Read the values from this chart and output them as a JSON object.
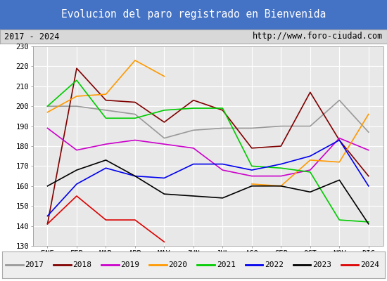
{
  "title": "Evolucion del paro registrado en Bienvenida",
  "subtitle_left": "2017 - 2024",
  "subtitle_right": "http://www.foro-ciudad.com",
  "months": [
    "ENE",
    "FEB",
    "MAR",
    "ABR",
    "MAY",
    "JUN",
    "JUL",
    "AGO",
    "SEP",
    "OCT",
    "NOV",
    "DIC"
  ],
  "ylim": [
    130,
    230
  ],
  "yticks": [
    130,
    140,
    150,
    160,
    170,
    180,
    190,
    200,
    210,
    220,
    230
  ],
  "series": {
    "2017": {
      "color": "#999999",
      "values": [
        200,
        200,
        198,
        196,
        184,
        188,
        189,
        189,
        190,
        190,
        203,
        187
      ]
    },
    "2018": {
      "color": "#800000",
      "values": [
        141,
        219,
        203,
        202,
        192,
        203,
        198,
        179,
        180,
        207,
        183,
        165
      ]
    },
    "2019": {
      "color": "#cc00cc",
      "values": [
        189,
        178,
        181,
        183,
        181,
        179,
        168,
        165,
        165,
        168,
        184,
        178
      ]
    },
    "2020": {
      "color": "#ff9900",
      "values": [
        197,
        205,
        206,
        223,
        215,
        null,
        null,
        161,
        160,
        173,
        172,
        196
      ]
    },
    "2021": {
      "color": "#00cc00",
      "values": [
        200,
        213,
        194,
        194,
        198,
        199,
        199,
        170,
        169,
        167,
        143,
        142
      ]
    },
    "2022": {
      "color": "#0000ee",
      "values": [
        145,
        161,
        169,
        165,
        164,
        171,
        171,
        168,
        171,
        175,
        183,
        160
      ]
    },
    "2023": {
      "color": "#000000",
      "values": [
        160,
        168,
        173,
        165,
        156,
        155,
        154,
        160,
        160,
        157,
        163,
        141
      ]
    },
    "2024": {
      "color": "#dd0000",
      "values": [
        141,
        155,
        143,
        143,
        132,
        null,
        null,
        null,
        null,
        null,
        null,
        null
      ]
    }
  },
  "title_bg": "#4472c4",
  "title_color": "#ffffff",
  "subtitle_bg": "#d8d8d8",
  "plot_bg": "#e8e8e8",
  "grid_color": "#ffffff",
  "legend_bg": "#eeeeee"
}
